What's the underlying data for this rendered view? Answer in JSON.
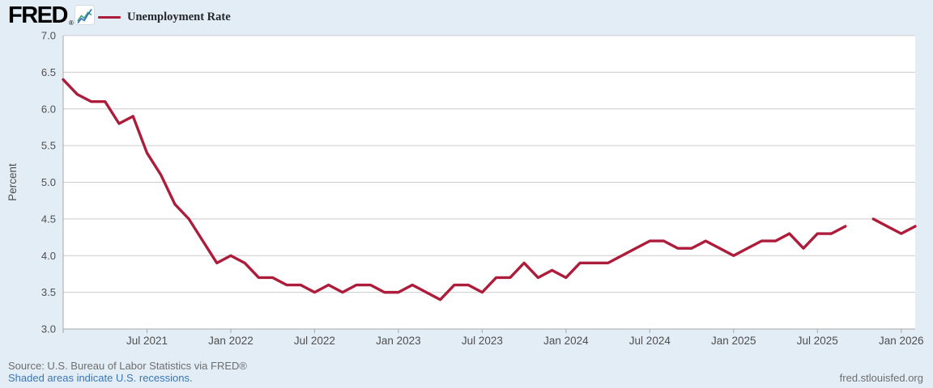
{
  "header": {
    "logo_text": "FRED",
    "registered_mark": "®",
    "legend_label": "Unemployment Rate"
  },
  "footer": {
    "source_line": "Source: U.S. Bureau of Labor Statistics via FRED®",
    "recessions_link": "Shaded areas indicate U.S. recessions.",
    "site_link": "fred.stlouisfed.org"
  },
  "chart_data": {
    "type": "line",
    "series_name": "Unemployment Rate",
    "ylabel": "Percent",
    "ylim": [
      3.0,
      7.0
    ],
    "ytick_labels": [
      "7.0",
      "6.5",
      "6.0",
      "5.5",
      "5.0",
      "4.5",
      "4.0",
      "3.5",
      "3.0"
    ],
    "grid": true,
    "legend_position": "top-left",
    "line_color": "#ad1d3b",
    "x": [
      "Jan 2021",
      "Feb 2021",
      "Mar 2021",
      "Apr 2021",
      "May 2021",
      "Jun 2021",
      "Jul 2021",
      "Aug 2021",
      "Sep 2021",
      "Oct 2021",
      "Nov 2021",
      "Dec 2021",
      "Jan 2022",
      "Feb 2022",
      "Mar 2022",
      "Apr 2022",
      "May 2022",
      "Jun 2022",
      "Jul 2022",
      "Aug 2022",
      "Sep 2022",
      "Oct 2022",
      "Nov 2022",
      "Dec 2022",
      "Jan 2023",
      "Feb 2023",
      "Mar 2023",
      "Apr 2023",
      "May 2023",
      "Jun 2023",
      "Jul 2023",
      "Aug 2023",
      "Sep 2023",
      "Oct 2023",
      "Nov 2023",
      "Dec 2023",
      "Jan 2024",
      "Feb 2024",
      "Mar 2024",
      "Apr 2024",
      "May 2024",
      "Jun 2024",
      "Jul 2024",
      "Aug 2024",
      "Sep 2024",
      "Oct 2024",
      "Nov 2024",
      "Dec 2024",
      "Jan 2025",
      "Feb 2025",
      "Mar 2025",
      "Apr 2025",
      "May 2025",
      "Jun 2025",
      "Jul 2025",
      "Aug 2025",
      "Sep 2025",
      "Oct 2025",
      "Nov 2025",
      "Dec 2025",
      "Jan 2026",
      "Feb 2026"
    ],
    "values": [
      6.4,
      6.2,
      6.1,
      6.1,
      5.8,
      5.9,
      5.4,
      5.1,
      4.7,
      4.5,
      4.2,
      3.9,
      4.0,
      3.9,
      3.7,
      3.7,
      3.6,
      3.6,
      3.5,
      3.6,
      3.5,
      3.6,
      3.6,
      3.5,
      3.5,
      3.6,
      3.5,
      3.4,
      3.6,
      3.6,
      3.5,
      3.7,
      3.7,
      3.9,
      3.7,
      3.8,
      3.7,
      3.9,
      3.9,
      3.9,
      4.0,
      4.1,
      4.2,
      4.2,
      4.1,
      4.1,
      4.2,
      4.1,
      4.0,
      4.1,
      4.2,
      4.2,
      4.3,
      4.1,
      4.3,
      4.3,
      4.4,
      null,
      4.5,
      4.4,
      4.3,
      4.4
    ],
    "xticks": [
      {
        "label": "Jul 2021",
        "month_index": 6
      },
      {
        "label": "Jan 2022",
        "month_index": 12
      },
      {
        "label": "Jul 2022",
        "month_index": 18
      },
      {
        "label": "Jan 2023",
        "month_index": 24
      },
      {
        "label": "Jul 2023",
        "month_index": 30
      },
      {
        "label": "Jan 2024",
        "month_index": 36
      },
      {
        "label": "Jul 2024",
        "month_index": 42
      },
      {
        "label": "Jan 2025",
        "month_index": 48
      },
      {
        "label": "Jul 2025",
        "month_index": 54
      },
      {
        "label": "Jan 2026",
        "month_index": 60
      }
    ]
  }
}
